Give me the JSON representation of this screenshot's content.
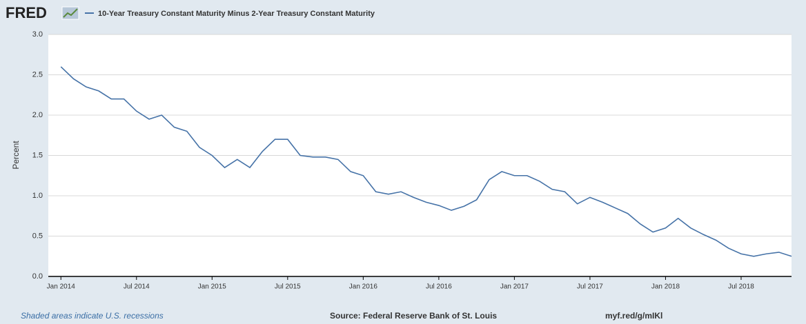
{
  "chart_data": {
    "type": "line",
    "logo": "FRED",
    "ylabel": "Percent",
    "note": "Shaded areas indicate U.S. recessions",
    "source": "Source: Federal Reserve Bank of St. Louis",
    "url": "myf.red/g/mIKl",
    "x": [
      "2014-01",
      "2014-02",
      "2014-03",
      "2014-04",
      "2014-05",
      "2014-06",
      "2014-07",
      "2014-08",
      "2014-09",
      "2014-10",
      "2014-11",
      "2014-12",
      "2015-01",
      "2015-02",
      "2015-03",
      "2015-04",
      "2015-05",
      "2015-06",
      "2015-07",
      "2015-08",
      "2015-09",
      "2015-10",
      "2015-11",
      "2015-12",
      "2016-01",
      "2016-02",
      "2016-03",
      "2016-04",
      "2016-05",
      "2016-06",
      "2016-07",
      "2016-08",
      "2016-09",
      "2016-10",
      "2016-11",
      "2016-12",
      "2017-01",
      "2017-02",
      "2017-03",
      "2017-04",
      "2017-05",
      "2017-06",
      "2017-07",
      "2017-08",
      "2017-09",
      "2017-10",
      "2017-11",
      "2017-12",
      "2018-01",
      "2018-02",
      "2018-03",
      "2018-04",
      "2018-05",
      "2018-06",
      "2018-07",
      "2018-08",
      "2018-09",
      "2018-10",
      "2018-11"
    ],
    "series": [
      {
        "name": "10-Year Treasury Constant Maturity Minus 2-Year Treasury Constant Maturity",
        "color": "#4572a7",
        "values": [
          2.6,
          2.45,
          2.35,
          2.3,
          2.2,
          2.2,
          2.05,
          1.95,
          2.0,
          1.85,
          1.8,
          1.6,
          1.5,
          1.35,
          1.45,
          1.35,
          1.55,
          1.7,
          1.7,
          1.5,
          1.48,
          1.48,
          1.45,
          1.3,
          1.25,
          1.05,
          1.02,
          1.05,
          0.98,
          0.92,
          0.88,
          0.82,
          0.87,
          0.95,
          1.2,
          1.3,
          1.25,
          1.25,
          1.18,
          1.08,
          1.05,
          0.9,
          0.98,
          0.92,
          0.85,
          0.78,
          0.65,
          0.55,
          0.6,
          0.72,
          0.6,
          0.52,
          0.45,
          0.35,
          0.28,
          0.25,
          0.28,
          0.3,
          0.25
        ]
      }
    ],
    "xlim": [
      "2013-12",
      "2018-11"
    ],
    "xticks": [
      {
        "value": "2014-01",
        "label": "Jan 2014"
      },
      {
        "value": "2014-07",
        "label": "Jul 2014"
      },
      {
        "value": "2015-01",
        "label": "Jan 2015"
      },
      {
        "value": "2015-07",
        "label": "Jul 2015"
      },
      {
        "value": "2016-01",
        "label": "Jan 2016"
      },
      {
        "value": "2016-07",
        "label": "Jul 2016"
      },
      {
        "value": "2017-01",
        "label": "Jan 2017"
      },
      {
        "value": "2017-07",
        "label": "Jul 2017"
      },
      {
        "value": "2018-01",
        "label": "Jan 2018"
      },
      {
        "value": "2018-07",
        "label": "Jul 2018"
      }
    ],
    "ylim": [
      0,
      3
    ],
    "yticks": [
      {
        "value": 0,
        "label": "0.0"
      },
      0.5,
      {
        "value": 1,
        "label": "1.0"
      },
      1.5,
      {
        "value": 2,
        "label": "2.0"
      },
      2.5,
      {
        "value": 3,
        "label": "3.0"
      }
    ],
    "grid": true
  }
}
